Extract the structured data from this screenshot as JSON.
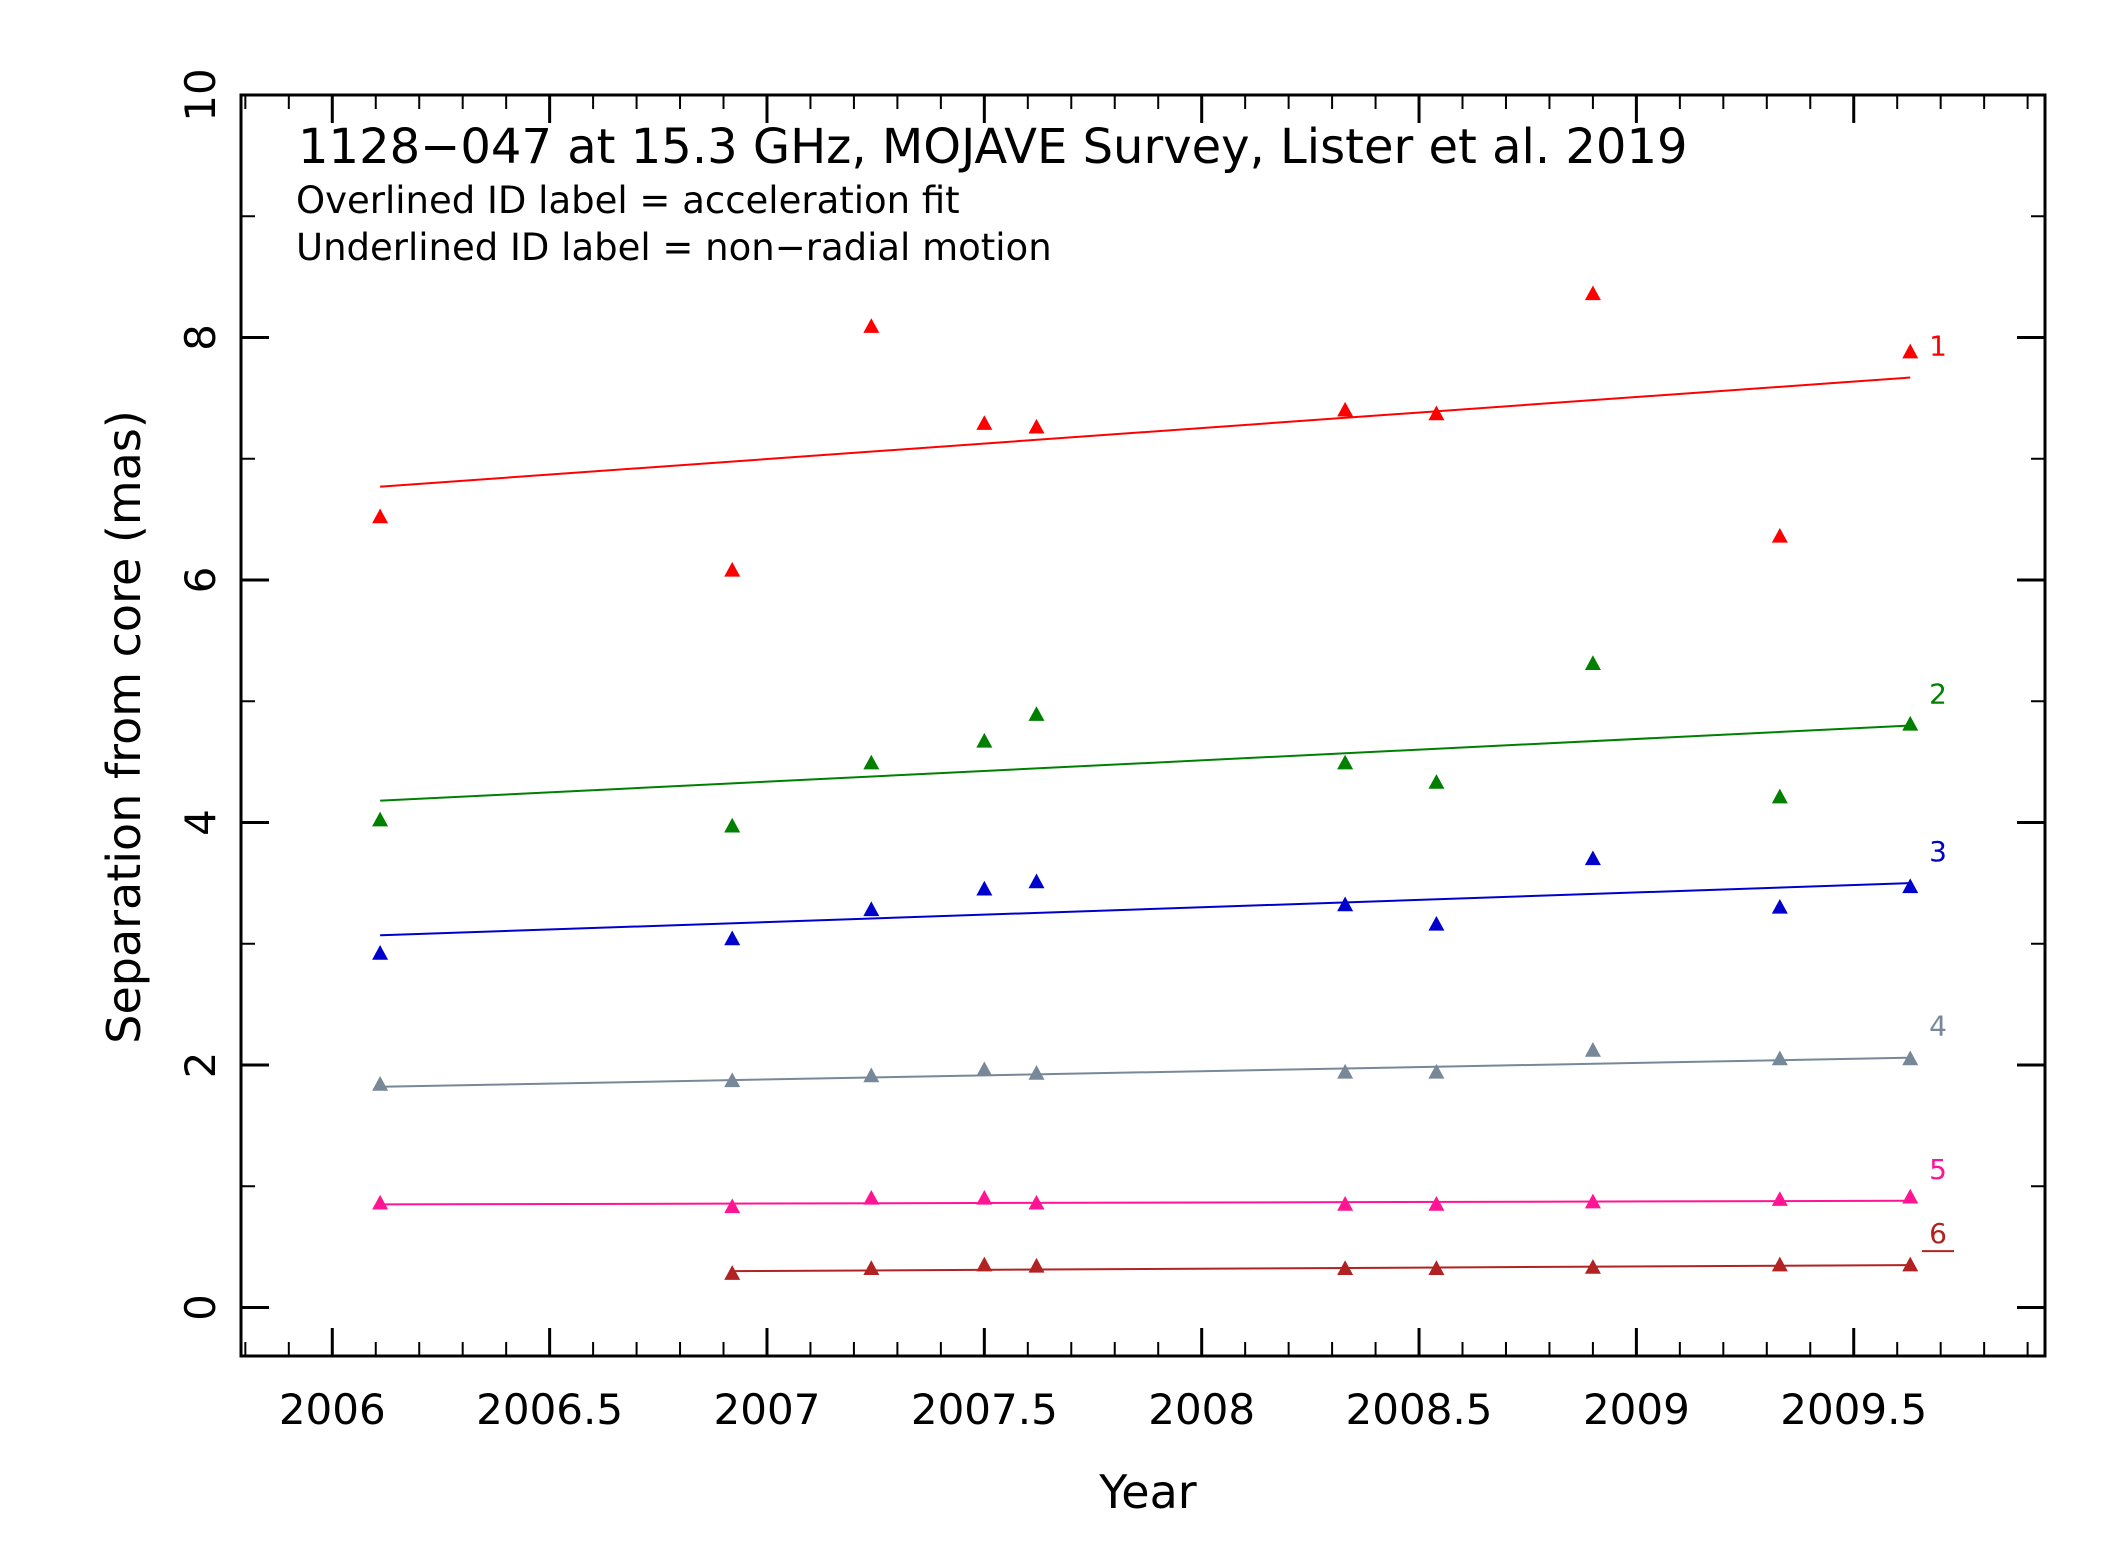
{
  "chart_data": {
    "type": "scatter",
    "title": "1128−047 at 15.3 GHz, MOJAVE Survey, Lister et al. 2019",
    "subtitle_lines": [
      "Overlined ID label = acceleration fit",
      "Underlined ID label = non−radial motion"
    ],
    "xlabel": "Year",
    "ylabel": "Separation from core (mas)",
    "xlim": [
      2005.79,
      2009.94
    ],
    "ylim": [
      -0.4,
      10
    ],
    "xticks": [
      2006,
      2006.5,
      2007,
      2007.5,
      2008,
      2008.5,
      2009,
      2009.5
    ],
    "xtick_labels": [
      "2006",
      "2006.5",
      "2007",
      "2007.5",
      "2008",
      "2008.5",
      "2009",
      "2009.5"
    ],
    "yticks": [
      0,
      2,
      4,
      6,
      8,
      10
    ],
    "ytick_labels": [
      "0",
      "2",
      "4",
      "6",
      "8",
      "10"
    ],
    "marker": "triangle",
    "series": [
      {
        "name": "1",
        "color": "#ff0000",
        "x": [
          2006.11,
          2006.92,
          2007.24,
          2007.5,
          2007.62,
          2008.33,
          2008.54,
          2008.9,
          2009.33,
          2009.63
        ],
        "y": [
          6.52,
          6.08,
          8.09,
          7.29,
          7.26,
          7.4,
          7.37,
          8.36,
          6.36,
          7.88
        ],
        "fit": {
          "x": [
            2006.11,
            2009.63
          ],
          "y": [
            6.77,
            7.67
          ]
        }
      },
      {
        "name": "2",
        "color": "#008000",
        "x": [
          2006.11,
          2006.92,
          2007.24,
          2007.5,
          2007.62,
          2008.33,
          2008.54,
          2008.9,
          2009.33,
          2009.63
        ],
        "y": [
          4.02,
          3.97,
          4.49,
          4.67,
          4.89,
          4.49,
          4.33,
          5.31,
          4.21,
          4.81
        ],
        "fit": {
          "x": [
            2006.11,
            2009.63
          ],
          "y": [
            4.18,
            4.8
          ]
        }
      },
      {
        "name": "3",
        "color": "#0000cc",
        "x": [
          2006.11,
          2006.92,
          2007.24,
          2007.5,
          2007.62,
          2008.33,
          2008.54,
          2008.9,
          2009.33,
          2009.63
        ],
        "y": [
          2.92,
          3.04,
          3.28,
          3.45,
          3.51,
          3.32,
          3.16,
          3.7,
          3.3,
          3.47
        ],
        "fit": {
          "x": [
            2006.11,
            2009.63
          ],
          "y": [
            3.07,
            3.5
          ]
        }
      },
      {
        "name": "4",
        "color": "#778899",
        "x": [
          2006.11,
          2006.92,
          2007.24,
          2007.5,
          2007.62,
          2008.33,
          2008.54,
          2008.9,
          2009.33,
          2009.63
        ],
        "y": [
          1.84,
          1.87,
          1.91,
          1.96,
          1.93,
          1.94,
          1.94,
          2.12,
          2.05,
          2.05
        ],
        "fit": {
          "x": [
            2006.11,
            2009.63
          ],
          "y": [
            1.82,
            2.06
          ]
        }
      },
      {
        "name": "5",
        "color": "#ff1493",
        "x": [
          2006.11,
          2006.92,
          2007.24,
          2007.5,
          2007.62,
          2008.33,
          2008.54,
          2008.9,
          2009.33,
          2009.63
        ],
        "y": [
          0.86,
          0.83,
          0.9,
          0.9,
          0.86,
          0.85,
          0.85,
          0.87,
          0.89,
          0.91
        ],
        "fit": {
          "x": [
            2006.11,
            2009.63
          ],
          "y": [
            0.85,
            0.88
          ]
        }
      },
      {
        "name": "6",
        "color": "#b22222",
        "underlined": true,
        "x": [
          2006.92,
          2007.24,
          2007.5,
          2007.62,
          2008.33,
          2008.54,
          2008.9,
          2009.33,
          2009.63
        ],
        "y": [
          0.28,
          0.32,
          0.35,
          0.34,
          0.32,
          0.32,
          0.33,
          0.35,
          0.35
        ],
        "fit": {
          "x": [
            2006.92,
            2009.63
          ],
          "y": [
            0.3,
            0.35
          ]
        }
      }
    ]
  }
}
